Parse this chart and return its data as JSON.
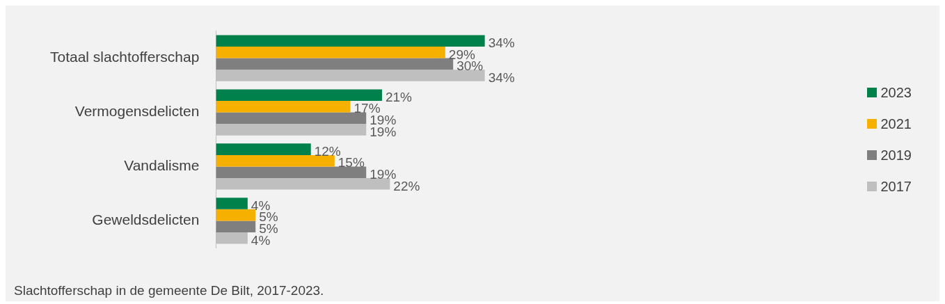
{
  "chart_data": {
    "type": "bar",
    "orientation": "horizontal",
    "categories": [
      "Totaal slachtofferschap",
      "Vermogensdelicten",
      "Vandalisme",
      "Geweldsdelicten"
    ],
    "series": [
      {
        "name": "2023",
        "color": "#00804b",
        "values": [
          34,
          21,
          12,
          4
        ],
        "value_labels": [
          "34%",
          "21%",
          "12%",
          "4%"
        ]
      },
      {
        "name": "2021",
        "color": "#f5b000",
        "values": [
          29,
          17,
          15,
          5
        ],
        "value_labels": [
          "29%",
          "17%",
          "15%",
          "5%"
        ]
      },
      {
        "name": "2019",
        "color": "#7f7f7f",
        "values": [
          30,
          19,
          19,
          5
        ],
        "value_labels": [
          "30%",
          "19%",
          "19%",
          "5%"
        ]
      },
      {
        "name": "2017",
        "color": "#bfbfbf",
        "values": [
          34,
          19,
          22,
          4
        ],
        "value_labels": [
          "34%",
          "19%",
          "22%",
          "4%"
        ]
      }
    ],
    "grid": false,
    "legend": "right",
    "tick_labels": "y",
    "annotations": [
      "Slachtofferschap in de gemeente De Bilt, 2017-2023."
    ]
  }
}
